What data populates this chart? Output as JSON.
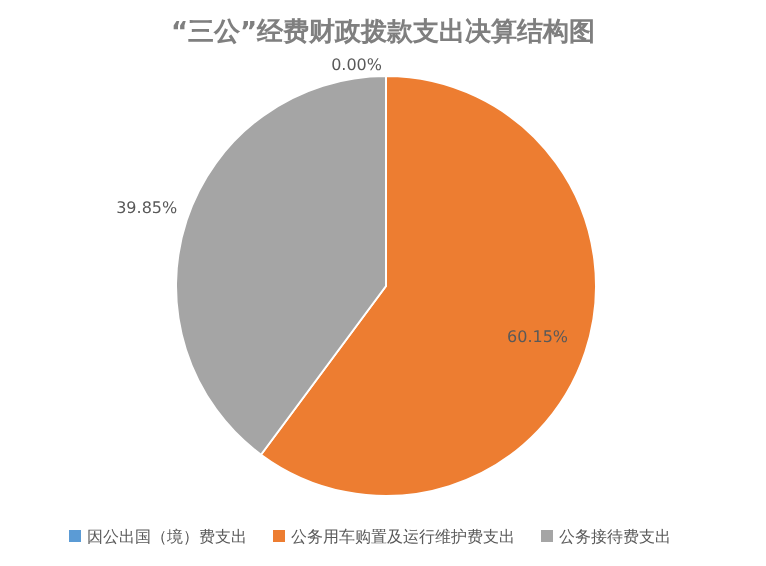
{
  "chart_data": {
    "type": "pie",
    "title": "“三公”经费财政拨款支出决算结构图",
    "categories": [
      "因公出国（境）费支出",
      "公务用车购置及运行维护费支出",
      "公务接待费支出"
    ],
    "values": [
      0,
      60.15,
      39.85
    ],
    "colors": [
      "#5b9bd5",
      "#ed7d31",
      "#a5a5a5"
    ],
    "value_labels": [
      "0.00%",
      "60.15%",
      "39.85%"
    ],
    "legend": "bottom"
  }
}
